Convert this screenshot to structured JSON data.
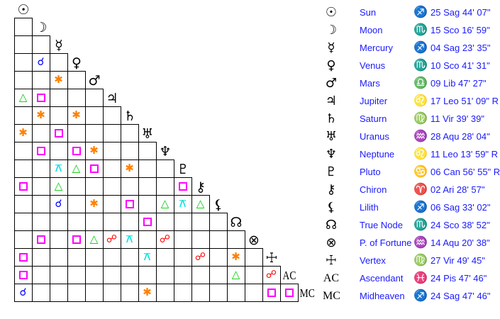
{
  "aspect_colors": {
    "conjunction": "#0000ff",
    "sextile": "#ff8000",
    "square": "#ff00ff",
    "trine": "#00cc00",
    "opposition": "#ff0000",
    "quincunx": "#00e0e0"
  },
  "aspect_glyphs": {
    "conjunction": "☌",
    "sextile": "✱",
    "trine": "△",
    "opposition": "☍",
    "quincunx": "⚻"
  },
  "bodies": [
    {
      "glyph": "☉",
      "name": "Sun",
      "sign": "♐",
      "position": "25 Sag 44' 07\""
    },
    {
      "glyph": "☽",
      "name": "Moon",
      "sign": "♏",
      "position": "15 Sco 16' 59\""
    },
    {
      "glyph": "☿",
      "name": "Mercury",
      "sign": "♐",
      "position": "04 Sag 23' 35\""
    },
    {
      "glyph": "♀",
      "name": "Venus",
      "sign": "♏",
      "position": "10 Sco 41' 31\""
    },
    {
      "glyph": "♂",
      "name": "Mars",
      "sign": "♎",
      "position": "09 Lib 47' 27\""
    },
    {
      "glyph": "♃",
      "name": "Jupiter",
      "sign": "♌",
      "position": "17 Leo 51' 09\" R"
    },
    {
      "glyph": "♄",
      "name": "Saturn",
      "sign": "♍",
      "position": "11 Vir 39' 39\""
    },
    {
      "glyph": "♅",
      "name": "Uranus",
      "sign": "♒",
      "position": "28 Aqu 28' 04\""
    },
    {
      "glyph": "♆",
      "name": "Neptune",
      "sign": "♌",
      "position": "11 Leo 13' 59\" R"
    },
    {
      "glyph": "♇",
      "name": "Pluto",
      "sign": "♋",
      "position": "06 Can 56' 55\" R"
    },
    {
      "glyph": "⚷",
      "name": "Chiron",
      "sign": "♈",
      "position": "02 Ari 28' 57\""
    },
    {
      "glyph": "⚸",
      "name": "Lilith",
      "sign": "♐",
      "position": "06 Sag 33' 02\""
    },
    {
      "glyph": "☊",
      "name": "True Node",
      "sign": "♏",
      "position": "24 Sco 38' 52\""
    },
    {
      "glyph": "⊗",
      "name": "P. of Fortune",
      "sign": "♒",
      "position": "14 Aqu 20' 38\""
    },
    {
      "glyph": "☩",
      "name": "Vertex",
      "sign": "♍",
      "position": "27 Vir 49' 45\""
    },
    {
      "glyph": "AC",
      "name": "Ascendant",
      "sign": "♓",
      "position": "24 Pis 47' 46\""
    },
    {
      "glyph": "MC",
      "name": "Midheaven",
      "sign": "♐",
      "position": "24 Sag 47' 46\""
    }
  ],
  "aspects": [
    [
      3,
      1,
      "conjunction"
    ],
    [
      4,
      2,
      "sextile"
    ],
    [
      5,
      0,
      "trine"
    ],
    [
      5,
      1,
      "square"
    ],
    [
      6,
      1,
      "sextile"
    ],
    [
      6,
      3,
      "sextile"
    ],
    [
      7,
      0,
      "sextile"
    ],
    [
      7,
      2,
      "square"
    ],
    [
      8,
      1,
      "square"
    ],
    [
      8,
      3,
      "square"
    ],
    [
      8,
      4,
      "sextile"
    ],
    [
      9,
      2,
      "quincunx"
    ],
    [
      9,
      3,
      "trine"
    ],
    [
      9,
      4,
      "square"
    ],
    [
      9,
      6,
      "sextile"
    ],
    [
      10,
      0,
      "square"
    ],
    [
      10,
      2,
      "trine"
    ],
    [
      10,
      9,
      "square"
    ],
    [
      11,
      2,
      "conjunction"
    ],
    [
      11,
      4,
      "sextile"
    ],
    [
      11,
      6,
      "square"
    ],
    [
      11,
      8,
      "trine"
    ],
    [
      11,
      9,
      "quincunx"
    ],
    [
      11,
      10,
      "trine"
    ],
    [
      12,
      7,
      "square"
    ],
    [
      13,
      1,
      "square"
    ],
    [
      13,
      3,
      "square"
    ],
    [
      13,
      4,
      "trine"
    ],
    [
      13,
      5,
      "opposition"
    ],
    [
      13,
      6,
      "quincunx"
    ],
    [
      13,
      8,
      "opposition"
    ],
    [
      14,
      0,
      "square"
    ],
    [
      14,
      7,
      "quincunx"
    ],
    [
      14,
      10,
      "opposition"
    ],
    [
      14,
      12,
      "sextile"
    ],
    [
      15,
      0,
      "square"
    ],
    [
      15,
      12,
      "trine"
    ],
    [
      15,
      14,
      "opposition"
    ],
    [
      16,
      0,
      "conjunction"
    ],
    [
      16,
      7,
      "sextile"
    ],
    [
      16,
      14,
      "square"
    ],
    [
      16,
      15,
      "square"
    ]
  ]
}
